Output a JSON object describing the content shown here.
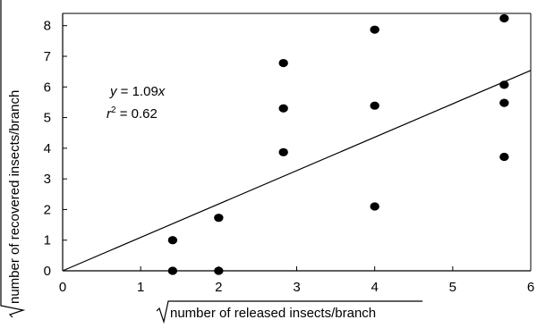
{
  "chart_data": {
    "type": "scatter",
    "title": "",
    "xlabel": "number of released insects/branch",
    "ylabel": "number of recovered insects/branch",
    "sqrt_symbol": "√",
    "xlim": [
      0,
      6
    ],
    "ylim": [
      0,
      8.4
    ],
    "x_ticks": [
      "0",
      "1",
      "2",
      "3",
      "4",
      "5",
      "6"
    ],
    "y_ticks": [
      "0",
      "1",
      "2",
      "3",
      "4",
      "5",
      "6",
      "7",
      "8"
    ],
    "grid": false,
    "points": [
      {
        "x": 1.41,
        "y": 1.0
      },
      {
        "x": 1.41,
        "y": 0.0
      },
      {
        "x": 2.0,
        "y": 1.73
      },
      {
        "x": 2.0,
        "y": 0.0
      },
      {
        "x": 2.83,
        "y": 6.78
      },
      {
        "x": 2.83,
        "y": 5.3
      },
      {
        "x": 2.83,
        "y": 3.87
      },
      {
        "x": 4.0,
        "y": 7.87
      },
      {
        "x": 4.0,
        "y": 5.39
      },
      {
        "x": 4.0,
        "y": 2.1
      },
      {
        "x": 5.66,
        "y": 8.24
      },
      {
        "x": 5.66,
        "y": 6.07
      },
      {
        "x": 5.66,
        "y": 5.48
      },
      {
        "x": 5.66,
        "y": 3.72
      }
    ],
    "fit_line": {
      "slope": 1.09,
      "intercept": 0
    },
    "annotations": {
      "equation": {
        "y_var": "y",
        "eq": " = 1.09",
        "x_var": "x"
      },
      "r2": {
        "r": "r",
        "sup": "2",
        "eq": " = 0.62"
      }
    }
  }
}
